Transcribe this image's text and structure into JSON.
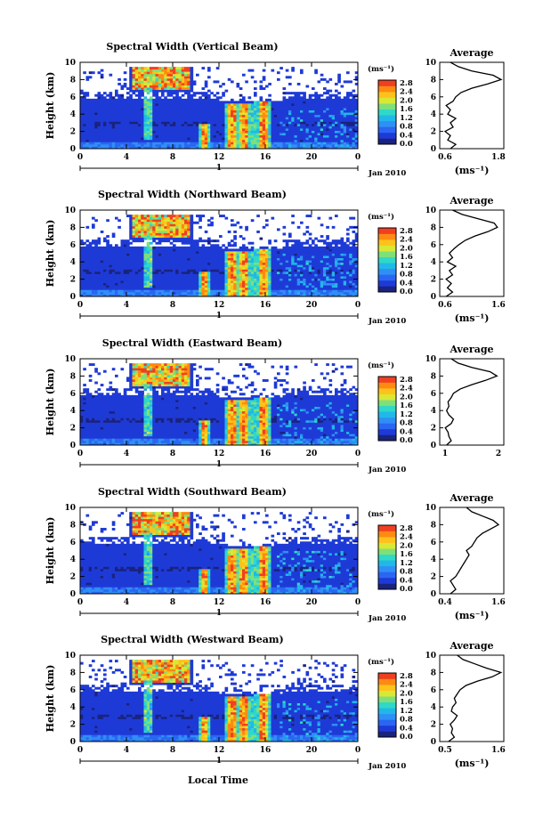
{
  "figure": {
    "x_axis_label": "Local Time",
    "month_label": "Jan 2010",
    "day_marker": "1",
    "y_axis_label": "Height (km)",
    "colorbar_unit": "(ms⁻¹)",
    "average_title": "Average",
    "average_unit": "(ms⁻¹)"
  },
  "colorbar": {
    "ticks": [
      "0.0",
      "0.4",
      "0.8",
      "1.2",
      "1.6",
      "2.0",
      "2.4",
      "2.8"
    ],
    "colors": [
      "#1a237e",
      "#1e3ad6",
      "#2a66f2",
      "#2f8ff5",
      "#20b8e8",
      "#30d8c8",
      "#7fe07a",
      "#d8e834",
      "#ffc21a",
      "#ff8a12",
      "#f04020"
    ]
  },
  "chart_data": [
    {
      "type": "heatmap",
      "title": "Spectral Width (Vertical Beam)",
      "xlabel": "",
      "ylabel": "Height (km)",
      "x_ticks": [
        "0",
        "4",
        "8",
        "12",
        "16",
        "20",
        "0"
      ],
      "y_ticks": [
        "0",
        "2",
        "4",
        "6",
        "8",
        "10"
      ],
      "xlim": [
        0,
        24
      ],
      "ylim": [
        0,
        10
      ],
      "clim": [
        0,
        2.8
      ],
      "average": {
        "title": "Average",
        "xlabel": "(ms⁻¹)",
        "x_ticks": [
          "0.6",
          "1.8"
        ],
        "xlim": [
          0.6,
          1.8
        ],
        "y_ticks": [
          "0",
          "2",
          "4",
          "6",
          "8",
          "10"
        ],
        "profile": [
          [
            0,
            0.8
          ],
          [
            0.5,
            0.9
          ],
          [
            1,
            0.75
          ],
          [
            1.5,
            0.8
          ],
          [
            2,
            0.7
          ],
          [
            2.5,
            0.85
          ],
          [
            3,
            0.8
          ],
          [
            3.5,
            0.9
          ],
          [
            4,
            0.75
          ],
          [
            4.5,
            0.8
          ],
          [
            5,
            0.72
          ],
          [
            5.5,
            0.85
          ],
          [
            6,
            0.9
          ],
          [
            6.5,
            1.0
          ],
          [
            7,
            1.2
          ],
          [
            7.5,
            1.5
          ],
          [
            8,
            1.75
          ],
          [
            8.5,
            1.6
          ],
          [
            9,
            1.2
          ],
          [
            9.5,
            0.95
          ],
          [
            10,
            0.8
          ]
        ]
      }
    },
    {
      "type": "heatmap",
      "title": "Spectral Width (Northward Beam)",
      "xlabel": "",
      "ylabel": "Height (km)",
      "x_ticks": [
        "0",
        "4",
        "8",
        "12",
        "16",
        "20",
        "0"
      ],
      "y_ticks": [
        "0",
        "2",
        "4",
        "6",
        "8",
        "10"
      ],
      "xlim": [
        0,
        24
      ],
      "ylim": [
        0,
        10
      ],
      "clim": [
        0,
        2.8
      ],
      "average": {
        "title": "Average",
        "xlabel": "(ms⁻¹)",
        "x_ticks": [
          "0.6",
          "1.6"
        ],
        "xlim": [
          0.6,
          1.6
        ],
        "y_ticks": [
          "0",
          "2",
          "4",
          "6",
          "8",
          "10"
        ],
        "profile": [
          [
            0,
            0.7
          ],
          [
            0.5,
            0.8
          ],
          [
            1,
            0.72
          ],
          [
            1.5,
            0.78
          ],
          [
            2,
            0.7
          ],
          [
            2.5,
            0.8
          ],
          [
            3,
            0.75
          ],
          [
            3.5,
            0.85
          ],
          [
            4,
            0.72
          ],
          [
            4.5,
            0.8
          ],
          [
            5,
            0.75
          ],
          [
            5.5,
            0.82
          ],
          [
            6,
            0.9
          ],
          [
            6.5,
            1.0
          ],
          [
            7,
            1.15
          ],
          [
            7.5,
            1.35
          ],
          [
            8,
            1.5
          ],
          [
            8.5,
            1.45
          ],
          [
            9,
            1.2
          ],
          [
            9.5,
            0.95
          ],
          [
            10,
            0.8
          ]
        ]
      }
    },
    {
      "type": "heatmap",
      "title": "Spectral Width (Eastward Beam)",
      "xlabel": "",
      "ylabel": "Height (km)",
      "x_ticks": [
        "0",
        "4",
        "8",
        "12",
        "16",
        "20",
        "0"
      ],
      "y_ticks": [
        "0",
        "2",
        "4",
        "6",
        "8",
        "10"
      ],
      "xlim": [
        0,
        24
      ],
      "ylim": [
        0,
        10
      ],
      "clim": [
        0,
        2.8
      ],
      "average": {
        "title": "Average",
        "xlabel": "",
        "x_ticks": [
          "1",
          "2"
        ],
        "xlim": [
          0.6,
          2.0
        ],
        "y_ticks": [
          "0",
          "2",
          "4",
          "6",
          "8",
          "10"
        ],
        "profile": [
          [
            0,
            0.75
          ],
          [
            0.5,
            0.85
          ],
          [
            1,
            0.8
          ],
          [
            1.5,
            0.78
          ],
          [
            2,
            0.72
          ],
          [
            2.5,
            0.85
          ],
          [
            3,
            0.9
          ],
          [
            3.5,
            0.8
          ],
          [
            4,
            0.75
          ],
          [
            4.5,
            0.8
          ],
          [
            5,
            0.78
          ],
          [
            5.5,
            0.85
          ],
          [
            6,
            0.9
          ],
          [
            6.5,
            1.05
          ],
          [
            7,
            1.3
          ],
          [
            7.5,
            1.6
          ],
          [
            8,
            1.85
          ],
          [
            8.5,
            1.7
          ],
          [
            9,
            1.3
          ],
          [
            9.5,
            1.0
          ],
          [
            10,
            0.85
          ]
        ]
      }
    },
    {
      "type": "heatmap",
      "title": "Spectral Width (Southward Beam)",
      "xlabel": "",
      "ylabel": "Height (km)",
      "x_ticks": [
        "0",
        "4",
        "8",
        "12",
        "16",
        "20",
        "0"
      ],
      "y_ticks": [
        "0",
        "2",
        "4",
        "6",
        "8",
        "10"
      ],
      "xlim": [
        0,
        24
      ],
      "ylim": [
        0,
        10
      ],
      "clim": [
        0,
        2.8
      ],
      "average": {
        "title": "Average",
        "xlabel": "(ms⁻¹)",
        "x_ticks": [
          "0.4",
          "1.6"
        ],
        "xlim": [
          0.4,
          1.6
        ],
        "y_ticks": [
          "0",
          "2",
          "4",
          "6",
          "8",
          "10"
        ],
        "profile": [
          [
            0,
            0.6
          ],
          [
            0.5,
            0.7
          ],
          [
            1,
            0.65
          ],
          [
            1.5,
            0.6
          ],
          [
            2,
            0.7
          ],
          [
            2.5,
            0.75
          ],
          [
            3,
            0.8
          ],
          [
            3.5,
            0.85
          ],
          [
            4,
            0.9
          ],
          [
            4.5,
            0.95
          ],
          [
            5,
            0.9
          ],
          [
            5.5,
            1.0
          ],
          [
            6,
            1.05
          ],
          [
            6.5,
            1.1
          ],
          [
            7,
            1.2
          ],
          [
            7.5,
            1.35
          ],
          [
            8,
            1.5
          ],
          [
            8.5,
            1.4
          ],
          [
            9,
            1.2
          ],
          [
            9.5,
            1.0
          ],
          [
            10,
            0.9
          ]
        ]
      }
    },
    {
      "type": "heatmap",
      "title": "Spectral Width (Westward Beam)",
      "xlabel": "",
      "ylabel": "Height (km)",
      "x_ticks": [
        "0",
        "4",
        "8",
        "12",
        "16",
        "20",
        "0"
      ],
      "y_ticks": [
        "0",
        "2",
        "4",
        "6",
        "8",
        "10"
      ],
      "xlim": [
        0,
        24
      ],
      "ylim": [
        0,
        10
      ],
      "clim": [
        0,
        2.8
      ],
      "average": {
        "title": "Average",
        "xlabel": "(ms⁻¹)",
        "x_ticks": [
          "0.5",
          "1.6"
        ],
        "xlim": [
          0.5,
          1.6
        ],
        "y_ticks": [
          "0",
          "2",
          "4",
          "6",
          "8",
          "10"
        ],
        "profile": [
          [
            0,
            0.65
          ],
          [
            0.5,
            0.75
          ],
          [
            1,
            0.7
          ],
          [
            1.5,
            0.72
          ],
          [
            2,
            0.68
          ],
          [
            2.5,
            0.75
          ],
          [
            3,
            0.8
          ],
          [
            3.5,
            0.7
          ],
          [
            4,
            0.72
          ],
          [
            4.5,
            0.78
          ],
          [
            5,
            0.75
          ],
          [
            5.5,
            0.8
          ],
          [
            6,
            0.85
          ],
          [
            6.5,
            0.95
          ],
          [
            7,
            1.15
          ],
          [
            7.5,
            1.4
          ],
          [
            8,
            1.55
          ],
          [
            8.5,
            1.3
          ],
          [
            9,
            1.1
          ],
          [
            9.5,
            0.9
          ],
          [
            10,
            0.8
          ]
        ]
      }
    }
  ]
}
